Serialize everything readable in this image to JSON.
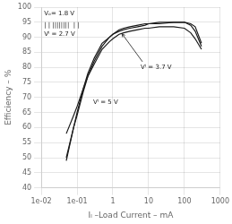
{
  "chart_data": {
    "type": "line",
    "x_label": "Iₗ –Load Current – mA",
    "y_label": "Efficiency – %",
    "log": "x",
    "grid": true,
    "color": "#1a1a1a",
    "xlim": [
      0.01,
      1000
    ],
    "xticks": [
      {
        "value": 0.01,
        "label": "1e-02"
      },
      {
        "value": 0.1,
        "label": "1e-01"
      },
      1,
      10,
      100,
      1000
    ],
    "ylim": [
      40,
      100
    ],
    "yticks": [
      40,
      45,
      50,
      55,
      60,
      65,
      70,
      75,
      80,
      85,
      90,
      95,
      100
    ],
    "x": [
      0.05,
      0.08,
      0.1,
      0.15,
      0.2,
      0.3,
      0.5,
      0.8,
      1.0,
      1.5,
      2,
      3,
      5,
      8,
      10,
      20,
      50,
      100,
      150,
      200,
      300
    ],
    "series": [
      {
        "values": [
          49,
          60,
          65,
          73,
          78,
          83,
          88,
          90,
          91,
          92.5,
          93,
          93.5,
          94,
          94.5,
          94.5,
          95,
          95,
          95,
          94.5,
          93.5,
          88
        ]
      },
      {
        "values": [
          50,
          60,
          64,
          72,
          77,
          82,
          87,
          90,
          91,
          92,
          92.5,
          93,
          93.5,
          94,
          94.5,
          94.5,
          95,
          95,
          94,
          92,
          87
        ]
      },
      {
        "values": [
          58,
          64,
          67,
          73,
          77,
          81,
          86,
          88.5,
          89.5,
          91,
          91.5,
          92,
          92.5,
          93,
          93,
          93.5,
          93.5,
          93,
          91.5,
          89.5,
          86
        ]
      }
    ],
    "annotations": [
      {
        "text": "Vₒ= 1.8 V",
        "x": 0.012,
        "y": 97.2
      },
      {
        "text": "| | ||||||||  | |",
        "x": 0.012,
        "y": 93.5
      },
      {
        "text": "Vᴵ = 2.7 V",
        "x": 0.012,
        "y": 90.5
      },
      {
        "text": "Vᴵ = 3.7 V",
        "x": 6.0,
        "y": 79.5,
        "arrow_x": 1.8,
        "arrow_y": 91.2
      },
      {
        "text": "Vᴵ = 5 V",
        "x": 0.28,
        "y": 68.0
      }
    ]
  }
}
